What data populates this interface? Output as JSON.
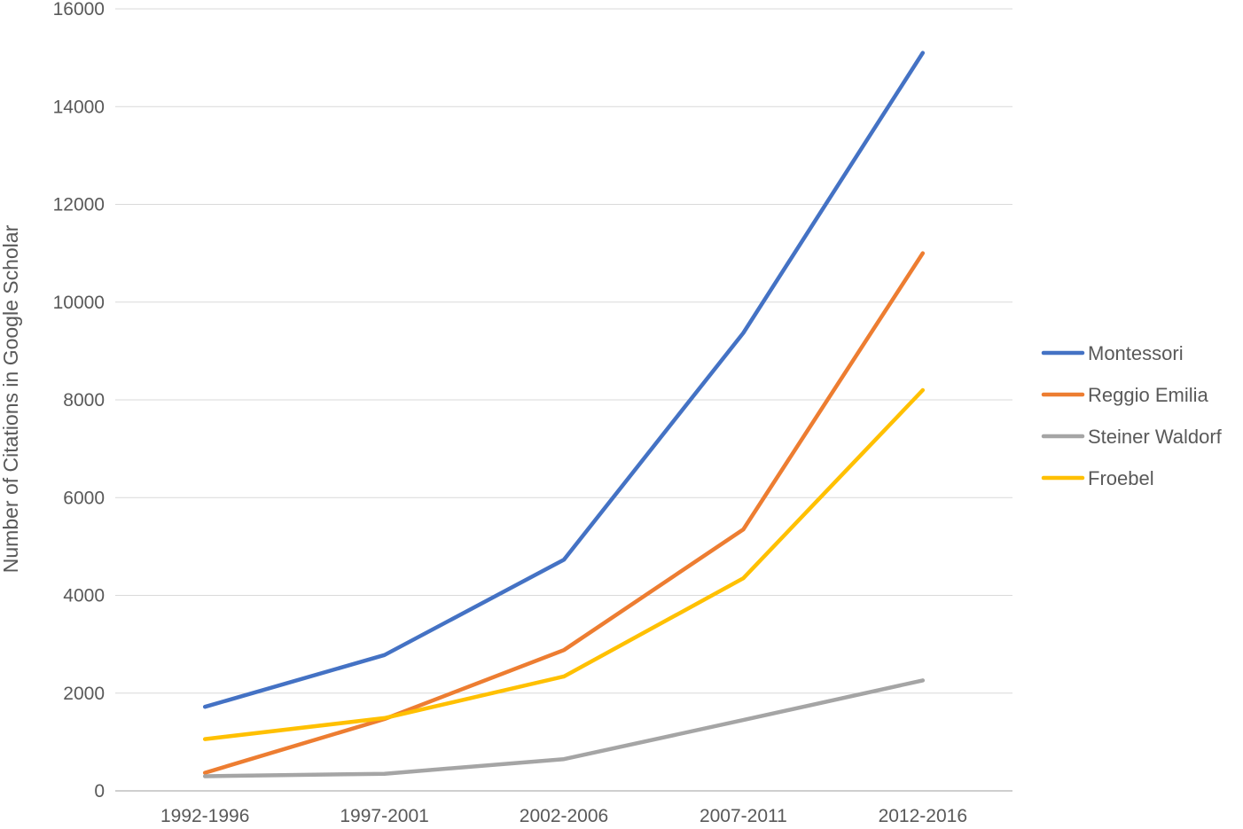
{
  "chart_data": {
    "type": "line",
    "title": "",
    "xlabel": "",
    "ylabel": "Number of Citations in Google Scholar",
    "categories": [
      "1992-1996",
      "1997-2001",
      "2002-2006",
      "2007-2011",
      "2012-2016"
    ],
    "ylim": [
      0,
      16000
    ],
    "yticks": [
      "0",
      "2000",
      "4000",
      "6000",
      "8000",
      "10000",
      "12000",
      "14000",
      "16000"
    ],
    "grid": true,
    "legend_position": "right",
    "series": [
      {
        "name": "Montessori",
        "color": "#4472C4",
        "values": [
          1720,
          2780,
          4730,
          9370,
          15100
        ]
      },
      {
        "name": "Reggio Emilia",
        "color": "#ED7D31",
        "values": [
          370,
          1470,
          2880,
          5350,
          11000
        ]
      },
      {
        "name": "Steiner Waldorf",
        "color": "#A5A5A5",
        "values": [
          300,
          350,
          650,
          1450,
          2260
        ]
      },
      {
        "name": "Froebel",
        "color": "#FFC000",
        "values": [
          1060,
          1490,
          2340,
          4350,
          8200
        ]
      }
    ]
  }
}
